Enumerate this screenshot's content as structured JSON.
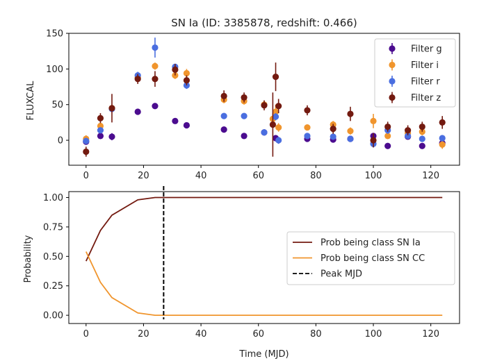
{
  "chart_data": [
    {
      "type": "scatter",
      "title": "SN Ia (ID: 3385878, redshift: 0.466)",
      "xlabel": "",
      "ylabel": "FLUXCAL",
      "xlim": [
        -6,
        130
      ],
      "ylim": [
        -35,
        150
      ],
      "xticks": [
        0,
        20,
        40,
        60,
        80,
        100,
        120
      ],
      "yticks": [
        0,
        50,
        100,
        150
      ],
      "legend_position": "top-right",
      "series": [
        {
          "name": "Filter g",
          "color": "#4b0c8f",
          "points": [
            {
              "x": 0,
              "y": -2,
              "err": 4
            },
            {
              "x": 5,
              "y": 6,
              "err": 4
            },
            {
              "x": 9,
              "y": 5,
              "err": 5
            },
            {
              "x": 18,
              "y": 40,
              "err": 3
            },
            {
              "x": 24,
              "y": 48,
              "err": 3
            },
            {
              "x": 31,
              "y": 27,
              "err": 3
            },
            {
              "x": 35,
              "y": 21,
              "err": 3
            },
            {
              "x": 48,
              "y": 15,
              "err": 3
            },
            {
              "x": 55,
              "y": 6,
              "err": 3
            },
            {
              "x": 62,
              "y": 11,
              "err": 3
            },
            {
              "x": 66,
              "y": 3,
              "err": 3
            },
            {
              "x": 77,
              "y": 2,
              "err": 3
            },
            {
              "x": 86,
              "y": 1,
              "err": 3
            },
            {
              "x": 92,
              "y": 2,
              "err": 3
            },
            {
              "x": 100,
              "y": 6,
              "err": 3
            },
            {
              "x": 105,
              "y": -8,
              "err": 4
            },
            {
              "x": 112,
              "y": 5,
              "err": 3
            },
            {
              "x": 117,
              "y": -8,
              "err": 3
            },
            {
              "x": 124,
              "y": -4,
              "err": 3
            }
          ]
        },
        {
          "name": "Filter i",
          "color": "#f0952d",
          "points": [
            {
              "x": 0,
              "y": 2,
              "err": 5
            },
            {
              "x": 5,
              "y": 20,
              "err": 5
            },
            {
              "x": 9,
              "y": 45,
              "err": 5
            },
            {
              "x": 18,
              "y": 88,
              "err": 5
            },
            {
              "x": 24,
              "y": 104,
              "err": 5
            },
            {
              "x": 31,
              "y": 91,
              "err": 5
            },
            {
              "x": 35,
              "y": 94,
              "err": 6
            },
            {
              "x": 48,
              "y": 57,
              "err": 5
            },
            {
              "x": 55,
              "y": 55,
              "err": 5
            },
            {
              "x": 62,
              "y": 50,
              "err": 5
            },
            {
              "x": 65,
              "y": 30,
              "err": 8
            },
            {
              "x": 66,
              "y": 40,
              "err": 10
            },
            {
              "x": 67,
              "y": 18,
              "err": 6
            },
            {
              "x": 77,
              "y": 18,
              "err": 4
            },
            {
              "x": 86,
              "y": 22,
              "err": 5
            },
            {
              "x": 92,
              "y": 13,
              "err": 5
            },
            {
              "x": 100,
              "y": 27,
              "err": 10
            },
            {
              "x": 105,
              "y": 6,
              "err": 4
            },
            {
              "x": 112,
              "y": 10,
              "err": 4
            },
            {
              "x": 117,
              "y": 12,
              "err": 5
            },
            {
              "x": 124,
              "y": -6,
              "err": 6
            }
          ]
        },
        {
          "name": "Filter r",
          "color": "#4a6ee0",
          "points": [
            {
              "x": 0,
              "y": -1,
              "err": 4
            },
            {
              "x": 5,
              "y": 14,
              "err": 4
            },
            {
              "x": 9,
              "y": 44,
              "err": 5
            },
            {
              "x": 18,
              "y": 91,
              "err": 5
            },
            {
              "x": 24,
              "y": 130,
              "err": 14
            },
            {
              "x": 31,
              "y": 103,
              "err": 4
            },
            {
              "x": 35,
              "y": 77,
              "err": 5
            },
            {
              "x": 48,
              "y": 34,
              "err": 4
            },
            {
              "x": 55,
              "y": 34,
              "err": 4
            },
            {
              "x": 62,
              "y": 11,
              "err": 4
            },
            {
              "x": 66,
              "y": 33,
              "err": 5
            },
            {
              "x": 67,
              "y": 0,
              "err": 5
            },
            {
              "x": 77,
              "y": 6,
              "err": 4
            },
            {
              "x": 86,
              "y": 5,
              "err": 4
            },
            {
              "x": 92,
              "y": 2,
              "err": 4
            },
            {
              "x": 100,
              "y": -5,
              "err": 5
            },
            {
              "x": 105,
              "y": 14,
              "err": 5
            },
            {
              "x": 112,
              "y": 6,
              "err": 4
            },
            {
              "x": 117,
              "y": 2,
              "err": 4
            },
            {
              "x": 124,
              "y": 3,
              "err": 4
            }
          ]
        },
        {
          "name": "Filter z",
          "color": "#731a10",
          "points": [
            {
              "x": 0,
              "y": -16,
              "err": 7
            },
            {
              "x": 5,
              "y": 31,
              "err": 7
            },
            {
              "x": 9,
              "y": 45,
              "err": 20
            },
            {
              "x": 18,
              "y": 86,
              "err": 7
            },
            {
              "x": 24,
              "y": 86,
              "err": 11
            },
            {
              "x": 31,
              "y": 99,
              "err": 8
            },
            {
              "x": 35,
              "y": 84,
              "err": 7
            },
            {
              "x": 48,
              "y": 62,
              "err": 8
            },
            {
              "x": 55,
              "y": 60,
              "err": 7
            },
            {
              "x": 62,
              "y": 49,
              "err": 7
            },
            {
              "x": 65,
              "y": 22,
              "err": 45
            },
            {
              "x": 66,
              "y": 89,
              "err": 20
            },
            {
              "x": 67,
              "y": 48,
              "err": 10
            },
            {
              "x": 77,
              "y": 42,
              "err": 7
            },
            {
              "x": 86,
              "y": 16,
              "err": 7
            },
            {
              "x": 92,
              "y": 37,
              "err": 10
            },
            {
              "x": 100,
              "y": 0,
              "err": 10
            },
            {
              "x": 105,
              "y": 19,
              "err": 7
            },
            {
              "x": 112,
              "y": 14,
              "err": 7
            },
            {
              "x": 117,
              "y": 19,
              "err": 7
            },
            {
              "x": 124,
              "y": 25,
              "err": 9
            }
          ]
        }
      ]
    },
    {
      "type": "line",
      "title": "",
      "xlabel": "Time (MJD)",
      "ylabel": "Probability",
      "xlim": [
        -6,
        130
      ],
      "ylim": [
        -0.07,
        1.05
      ],
      "xticks": [
        0,
        20,
        40,
        60,
        80,
        100,
        120
      ],
      "yticks": [
        0.0,
        0.25,
        0.5,
        0.75,
        1.0
      ],
      "ytick_labels": [
        "0.00",
        "0.25",
        "0.50",
        "0.75",
        "1.00"
      ],
      "legend_position": "center-right",
      "vline": {
        "name": "Peak MJD",
        "x": 27,
        "color": "#000000",
        "style": "dashed"
      },
      "series": [
        {
          "name": "Prob being class SN Ia",
          "color": "#731a10",
          "x": [
            0,
            5,
            9,
            18,
            24,
            31,
            35,
            48,
            55,
            62,
            67,
            77,
            86,
            92,
            100,
            105,
            112,
            117,
            124
          ],
          "y": [
            0.46,
            0.72,
            0.85,
            0.98,
            1.0,
            1.0,
            1.0,
            1.0,
            1.0,
            1.0,
            1.0,
            1.0,
            1.0,
            1.0,
            1.0,
            1.0,
            1.0,
            1.0,
            1.0
          ]
        },
        {
          "name": "Prob being class SN CC",
          "color": "#f0952d",
          "x": [
            0,
            5,
            9,
            18,
            24,
            31,
            35,
            48,
            55,
            62,
            67,
            77,
            86,
            92,
            100,
            105,
            112,
            117,
            124
          ],
          "y": [
            0.54,
            0.28,
            0.15,
            0.02,
            0.0,
            0.0,
            0.0,
            0.0,
            0.0,
            0.0,
            0.0,
            0.0,
            0.0,
            0.0,
            0.0,
            0.0,
            0.0,
            0.0,
            0.0
          ]
        }
      ]
    }
  ]
}
